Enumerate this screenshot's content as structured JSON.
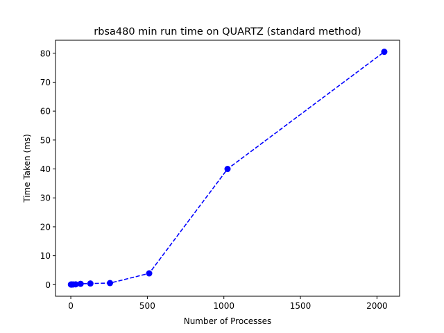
{
  "chart_data": {
    "type": "line",
    "title": "rbsa480 min run time on QUARTZ (standard method)",
    "xlabel": "Number of Processes",
    "ylabel": "Time Taken (ms)",
    "xlim": [
      -100,
      2148
    ],
    "ylim": [
      -4.0,
      84.5
    ],
    "xticks": [
      0,
      500,
      1000,
      1500,
      2000
    ],
    "yticks": [
      0,
      10,
      20,
      30,
      40,
      50,
      60,
      70,
      80
    ],
    "grid": false,
    "series": [
      {
        "color": "#0000ff",
        "line_style": "dashed",
        "marker": "circle",
        "x": [
          1,
          2,
          4,
          8,
          16,
          32,
          64,
          128,
          256,
          512,
          1024,
          2048
        ],
        "y": [
          0.05,
          0.05,
          0.05,
          0.05,
          0.08,
          0.12,
          0.3,
          0.4,
          0.55,
          3.9,
          40.0,
          80.5
        ]
      }
    ]
  }
}
